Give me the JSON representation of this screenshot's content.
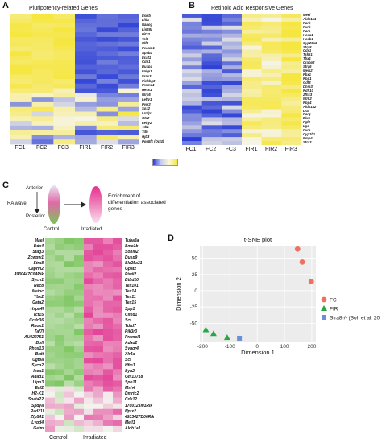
{
  "panelA": {
    "letter": "A",
    "title": "Pluripotency-related Genes",
    "genes": [
      "Esrrb",
      "Lifr1",
      "Nanog",
      "Lin28a",
      "Pitx2",
      "Tcl1",
      "Klf4",
      "Pecam1",
      "Ap3b2",
      "Ecat1",
      "Cdh1",
      "Dusp4",
      "Fnbp1",
      "Eras3",
      "Pinkhg3",
      "Prdm14",
      "Hesx1",
      "Nlrp5",
      "Lefty1",
      "Pyrr2",
      "Sox2",
      "Lrrtlp1",
      "Otx2",
      "Lefty2",
      "Tdf1",
      "Tdh",
      "Gjb3",
      "Pou5f1 (Oct4)"
    ],
    "columns": [
      "FC1",
      "FC2",
      "FC3",
      "FIR1",
      "FIR2",
      "FIR3"
    ]
  },
  "panelB": {
    "letter": "B",
    "title": "Retinoic Acid Responsive Genes",
    "genes": [
      "Meel",
      "Aldh1a1",
      "Rarb",
      "Rxrb",
      "Rara",
      "Hoxa1",
      "Hoxb1",
      "Cyp26a1",
      "Stra8",
      "Cdx1",
      "Tshz1",
      "Tbx1",
      "Crabp2",
      "Stra6",
      "Meis2",
      "Pbx1",
      "Rbp1",
      "Gdf3",
      "Dhrs3",
      "Rdh10",
      "Zfhx3",
      "Ntrk2",
      "Rbp4",
      "Aldh1a2",
      "Lrat",
      "Rarg",
      "Dlx5",
      "Fgf8",
      "Lgs",
      "Rxra",
      "Cyp1b1",
      "Bmp4",
      "Stra3"
    ],
    "columns": [
      "FC1",
      "FC2",
      "FC3",
      "FIR1",
      "FIR2",
      "FIR3"
    ]
  },
  "panelC": {
    "letter": "C",
    "anterior": "Anterior",
    "posterior": "Posterior",
    "ra_wave": "RA wave",
    "control": "Control",
    "irradiated": "Irradiated",
    "enrichment": "Enrichment of differentiation associated genes",
    "genes_left": [
      "Mael",
      "Ddx4",
      "Stag3",
      "Zcwpw1",
      "Stra8",
      "Caprin2",
      "4930447C04Rik",
      "Sycn1",
      "Rec8",
      "Meioc",
      "Ybx2",
      "Gata2",
      "Hspa4l",
      "Tcf15",
      "Ccdc36",
      "Rhox1",
      "Taf7l",
      "AU022751",
      "Boll",
      "Rhox13",
      "Brdt",
      "Ugt8a",
      "Sycp2",
      "Inca1",
      "Adad1",
      "Lipn3",
      "Eaf2",
      "H2-K1",
      "Spata22",
      "Spdya",
      "Rad21l",
      "Zfp541",
      "Lypd4",
      "Gatm"
    ],
    "genes_right": [
      "Tuba3a",
      "Smc1b",
      "Sohlh2",
      "Dusp9",
      "Slc25a31",
      "Gpat2",
      "Piwil2",
      "Btbd10",
      "Tex101",
      "Tex14",
      "Tex11",
      "Tex15",
      "Spp1",
      "Cited1",
      "Sct",
      "Tdrd7",
      "Pik3r3",
      "Pramel1",
      "Adad2",
      "Syngr4",
      "Xlr4a",
      "Sct",
      "Hfm1",
      "Syn2",
      "Gm13718",
      "Spo11",
      "Msh4",
      "Dmrtc2",
      "Cdk12",
      "1700123I01Rik",
      "Nptx2",
      "4933427D06Rik",
      "Meil1",
      "Aldh1a1"
    ],
    "col_control": "Control",
    "col_irradiated": "Irradiated"
  },
  "panelD": {
    "letter": "D",
    "chart_data": {
      "type": "scatter",
      "title": "t-SNE plot",
      "xlabel": "Dimension 1",
      "ylabel": "Dimension 2",
      "xlim": [
        -210,
        215
      ],
      "ylim": [
        -78,
        68
      ],
      "xticks": [
        -200,
        -100,
        0,
        100,
        200
      ],
      "yticks": [
        -50,
        -25,
        0,
        25,
        50
      ],
      "legend_position": "right",
      "series": [
        {
          "name": "FC",
          "marker": "circle",
          "color": "#f07060",
          "x": [
            148,
            165,
            198
          ],
          "y": [
            64,
            44,
            14
          ]
        },
        {
          "name": "FIR",
          "marker": "triangle",
          "color": "#27a844",
          "x": [
            -188,
            -160,
            -110
          ],
          "y": [
            -60,
            -66,
            -72
          ]
        },
        {
          "name": "Stra8-/- (Soh et al. 2015)",
          "marker": "square",
          "color": "#6a8fd8",
          "x": [
            -65
          ],
          "y": [
            -73
          ]
        }
      ]
    }
  },
  "colors": {
    "yellow": "#f5e860",
    "blue": "#3a4ad8",
    "green": "#6cc24a",
    "pink": "#e8509c"
  }
}
